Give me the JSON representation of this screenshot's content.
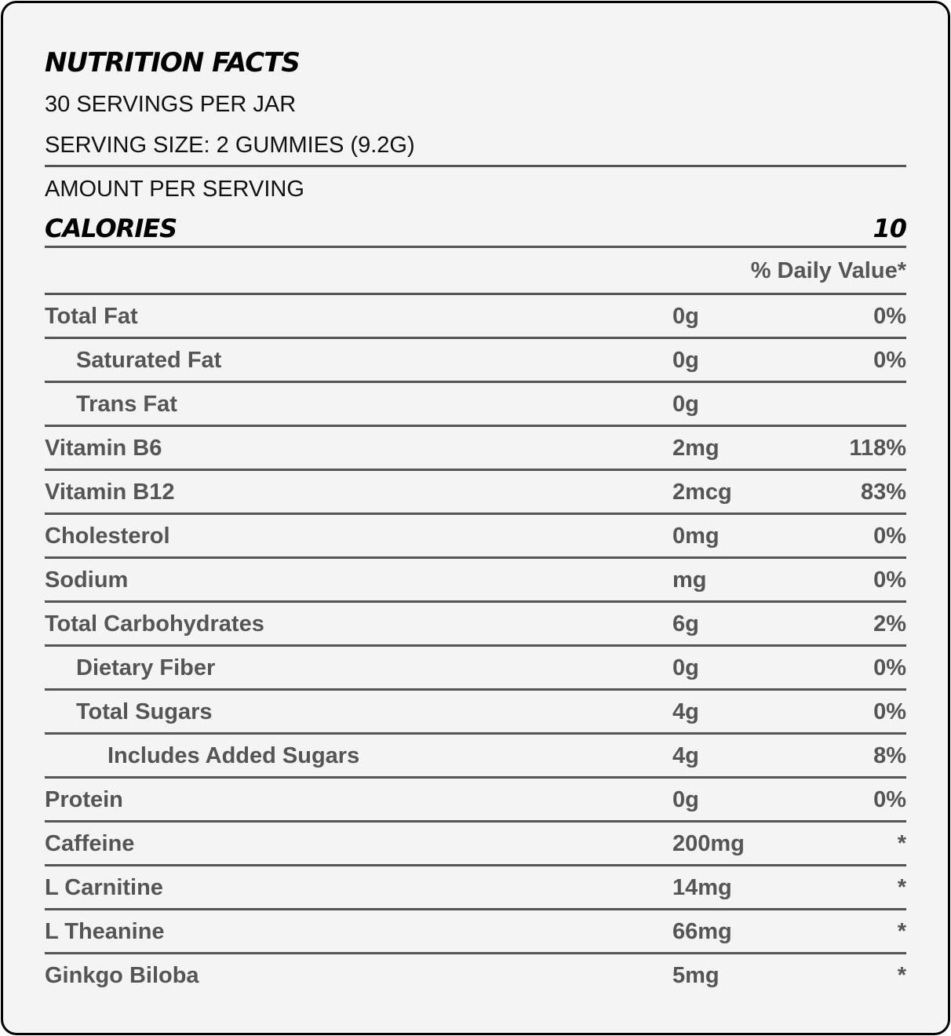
{
  "title": "NUTRITION FACTS",
  "servings_per_container": "30 SERVINGS PER JAR",
  "serving_size": "SERVING SIZE: 2 GUMMIES (9.2G)",
  "amount_per_serving": "AMOUNT PER SERVING",
  "calories": {
    "label": "CALORIES",
    "value": "10"
  },
  "daily_value_header": "% Daily Value*",
  "rows": [
    {
      "name": "Total Fat",
      "amount": "0g",
      "dv": "0%",
      "indent": 0
    },
    {
      "name": "Saturated Fat",
      "amount": "0g",
      "dv": "0%",
      "indent": 1
    },
    {
      "name": "Trans Fat",
      "amount": "0g",
      "dv": "",
      "indent": 1
    },
    {
      "name": "Vitamin B6",
      "amount": "2mg",
      "dv": "118%",
      "indent": 0
    },
    {
      "name": "Vitamin B12",
      "amount": "2mcg",
      "dv": "83%",
      "indent": 0
    },
    {
      "name": "Cholesterol",
      "amount": "0mg",
      "dv": "0%",
      "indent": 0
    },
    {
      "name": "Sodium",
      "amount": "mg",
      "dv": "0%",
      "indent": 0
    },
    {
      "name": "Total Carbohydrates",
      "amount": "6g",
      "dv": "2%",
      "indent": 0
    },
    {
      "name": "Dietary Fiber",
      "amount": "0g",
      "dv": "0%",
      "indent": 1
    },
    {
      "name": "Total Sugars",
      "amount": "4g",
      "dv": "0%",
      "indent": 1
    },
    {
      "name": "Includes Added Sugars",
      "amount": "4g",
      "dv": "8%",
      "indent": 2
    },
    {
      "name": "Protein",
      "amount": "0g",
      "dv": "0%",
      "indent": 0
    },
    {
      "name": "Caffeine",
      "amount": "200mg",
      "dv": "*",
      "indent": 0
    },
    {
      "name": "L Carnitine",
      "amount": "14mg",
      "dv": "*",
      "indent": 0
    },
    {
      "name": "L Theanine",
      "amount": "66mg",
      "dv": "*",
      "indent": 0
    },
    {
      "name": "Ginkgo Biloba",
      "amount": "5mg",
      "dv": "*",
      "indent": 0
    }
  ]
}
